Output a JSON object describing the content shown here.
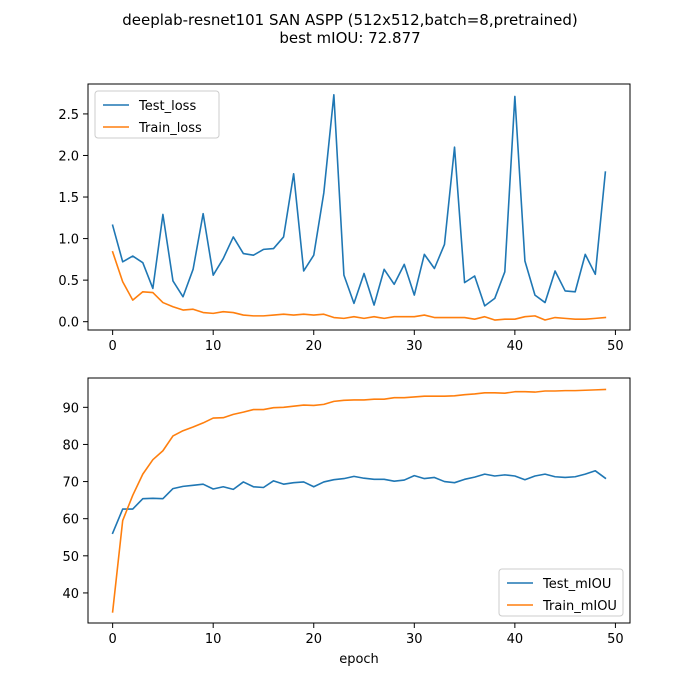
{
  "chart_data": {
    "title": "deeplab-resnet101 SAN ASPP (512x512,batch=8,pretrained)",
    "subtitle": "best mIOU: 72.877",
    "colors": {
      "test": "#1f77b4",
      "train": "#ff7f0e"
    },
    "subplots": [
      {
        "type": "line",
        "xlabel": "",
        "ylabel": "",
        "xlim": [
          -2.45,
          51.45
        ],
        "ylim": [
          -0.1,
          2.86
        ],
        "xticks": [
          0,
          10,
          20,
          30,
          40,
          50
        ],
        "xtick_labels": [
          "0",
          "10",
          "20",
          "30",
          "40",
          "50"
        ],
        "yticks": [
          0.0,
          0.5,
          1.0,
          1.5,
          2.0,
          2.5
        ],
        "ytick_labels": [
          "0.0",
          "0.5",
          "1.0",
          "1.5",
          "2.0",
          "2.5"
        ],
        "legend": "top-left",
        "grid": false,
        "x": [
          0,
          1,
          2,
          3,
          4,
          5,
          6,
          7,
          8,
          9,
          10,
          11,
          12,
          13,
          14,
          15,
          16,
          17,
          18,
          19,
          20,
          21,
          22,
          23,
          24,
          25,
          26,
          27,
          28,
          29,
          30,
          31,
          32,
          33,
          34,
          35,
          36,
          37,
          38,
          39,
          40,
          41,
          42,
          43,
          44,
          45,
          46,
          47,
          48,
          49
        ],
        "series": [
          {
            "name": "Test_loss",
            "color_key": "test",
            "values": [
              1.16,
              0.72,
              0.79,
              0.71,
              0.4,
              1.29,
              0.49,
              0.3,
              0.63,
              1.3,
              0.56,
              0.76,
              1.02,
              0.82,
              0.8,
              0.87,
              0.88,
              1.02,
              1.78,
              0.61,
              0.8,
              1.55,
              2.73,
              0.56,
              0.22,
              0.58,
              0.2,
              0.63,
              0.45,
              0.69,
              0.32,
              0.81,
              0.64,
              0.93,
              2.1,
              0.47,
              0.55,
              0.19,
              0.28,
              0.6,
              2.71,
              0.73,
              0.32,
              0.23,
              0.61,
              0.37,
              0.36,
              0.81,
              0.57,
              1.8
            ]
          },
          {
            "name": "Train_loss",
            "color_key": "train",
            "values": [
              0.84,
              0.48,
              0.26,
              0.36,
              0.35,
              0.23,
              0.18,
              0.14,
              0.15,
              0.11,
              0.1,
              0.12,
              0.11,
              0.08,
              0.07,
              0.07,
              0.08,
              0.09,
              0.08,
              0.09,
              0.08,
              0.09,
              0.05,
              0.04,
              0.06,
              0.04,
              0.06,
              0.04,
              0.06,
              0.06,
              0.06,
              0.08,
              0.05,
              0.05,
              0.05,
              0.05,
              0.03,
              0.06,
              0.02,
              0.03,
              0.03,
              0.06,
              0.07,
              0.02,
              0.05,
              0.04,
              0.03,
              0.03,
              0.04,
              0.05
            ]
          }
        ]
      },
      {
        "type": "line",
        "xlabel": "epoch",
        "ylabel": "",
        "xlim": [
          -2.45,
          51.45
        ],
        "ylim": [
          31.9,
          97.9
        ],
        "xticks": [
          0,
          10,
          20,
          30,
          40,
          50
        ],
        "xtick_labels": [
          "0",
          "10",
          "20",
          "30",
          "40",
          "50"
        ],
        "yticks": [
          40,
          50,
          60,
          70,
          80,
          90
        ],
        "ytick_labels": [
          "40",
          "50",
          "60",
          "70",
          "80",
          "90"
        ],
        "legend": "bottom-right",
        "grid": false,
        "x": [
          0,
          1,
          2,
          3,
          4,
          5,
          6,
          7,
          8,
          9,
          10,
          11,
          12,
          13,
          14,
          15,
          16,
          17,
          18,
          19,
          20,
          21,
          22,
          23,
          24,
          25,
          26,
          27,
          28,
          29,
          30,
          31,
          32,
          33,
          34,
          35,
          36,
          37,
          38,
          39,
          40,
          41,
          42,
          43,
          44,
          45,
          46,
          47,
          48,
          49
        ],
        "series": [
          {
            "name": "Test_mIOU",
            "color_key": "test",
            "values": [
              56.1,
              62.6,
              62.6,
              65.4,
              65.5,
              65.4,
              68.1,
              68.7,
              69.0,
              69.3,
              68.0,
              68.6,
              67.9,
              69.9,
              68.6,
              68.4,
              70.2,
              69.3,
              69.7,
              69.9,
              68.6,
              69.9,
              70.5,
              70.8,
              71.4,
              70.9,
              70.6,
              70.6,
              70.1,
              70.4,
              71.6,
              70.8,
              71.1,
              70.0,
              69.7,
              70.6,
              71.2,
              72.0,
              71.5,
              71.8,
              71.5,
              70.5,
              71.5,
              72.0,
              71.3,
              71.1,
              71.3,
              72.0,
              72.9,
              70.9
            ]
          },
          {
            "name": "Train_mIOU",
            "color_key": "train",
            "values": [
              34.9,
              59.5,
              66.3,
              72.0,
              75.9,
              78.3,
              82.3,
              83.7,
              84.7,
              85.8,
              87.1,
              87.2,
              88.1,
              88.7,
              89.4,
              89.4,
              89.9,
              90.0,
              90.3,
              90.6,
              90.5,
              90.8,
              91.6,
              91.9,
              92.0,
              92.0,
              92.2,
              92.2,
              92.6,
              92.6,
              92.8,
              93.0,
              93.0,
              93.0,
              93.1,
              93.4,
              93.6,
              93.9,
              93.9,
              93.8,
              94.2,
              94.2,
              94.1,
              94.4,
              94.4,
              94.5,
              94.5,
              94.6,
              94.7,
              94.8
            ]
          }
        ]
      }
    ]
  }
}
